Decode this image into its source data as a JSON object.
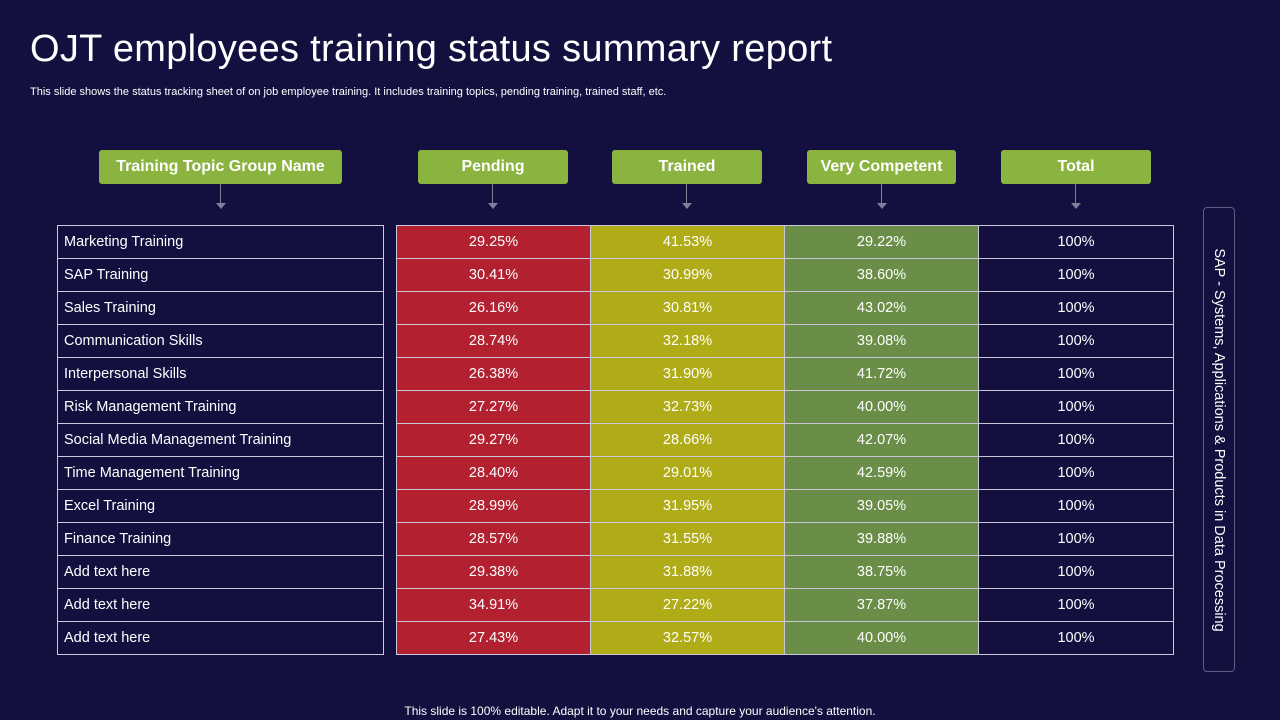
{
  "title": "OJT employees training status summary report",
  "subtitle": "This slide shows the status tracking sheet of on job employee training. It includes training topics, pending training, trained staff, etc.",
  "headers": {
    "topic": "Training Topic Group Name",
    "pending": "Pending",
    "trained": "Trained",
    "competent": "Very Competent",
    "total": "Total"
  },
  "rows": [
    {
      "name": "Marketing Training",
      "pending": "29.25%",
      "trained": "41.53%",
      "competent": "29.22%",
      "total": "100%"
    },
    {
      "name": "SAP Training",
      "pending": "30.41%",
      "trained": "30.99%",
      "competent": "38.60%",
      "total": "100%"
    },
    {
      "name": "Sales Training",
      "pending": "26.16%",
      "trained": "30.81%",
      "competent": "43.02%",
      "total": "100%"
    },
    {
      "name": "Communication Skills",
      "pending": "28.74%",
      "trained": "32.18%",
      "competent": "39.08%",
      "total": "100%"
    },
    {
      "name": "Interpersonal Skills",
      "pending": "26.38%",
      "trained": "31.90%",
      "competent": "41.72%",
      "total": "100%"
    },
    {
      "name": "Risk Management Training",
      "pending": "27.27%",
      "trained": "32.73%",
      "competent": "40.00%",
      "total": "100%"
    },
    {
      "name": "Social Media Management Training",
      "pending": "29.27%",
      "trained": "28.66%",
      "competent": "42.07%",
      "total": "100%"
    },
    {
      "name": "Time Management Training",
      "pending": "28.40%",
      "trained": "29.01%",
      "competent": "42.59%",
      "total": "100%"
    },
    {
      "name": "Excel Training",
      "pending": "28.99%",
      "trained": "31.95%",
      "competent": "39.05%",
      "total": "100%"
    },
    {
      "name": "Finance Training",
      "pending": "28.57%",
      "trained": "31.55%",
      "competent": "39.88%",
      "total": "100%"
    },
    {
      "name": "Add text here",
      "pending": "29.38%",
      "trained": "31.88%",
      "competent": "38.75%",
      "total": "100%"
    },
    {
      "name": "Add text here",
      "pending": "34.91%",
      "trained": "27.22%",
      "competent": "37.87%",
      "total": "100%"
    },
    {
      "name": "Add text here",
      "pending": "27.43%",
      "trained": "32.57%",
      "competent": "40.00%",
      "total": "100%"
    }
  ],
  "side_note": "SAP - Systems, Applications & Products in Data Processing",
  "footer": "This slide is 100% editable. Adapt it to your needs and capture your audience's attention.",
  "colors": {
    "background": "#130f3f",
    "header_green": "#8ab33f",
    "pending_red": "#b3202f",
    "trained_yellow": "#b0ac18",
    "competent_green": "#6a8e48"
  }
}
